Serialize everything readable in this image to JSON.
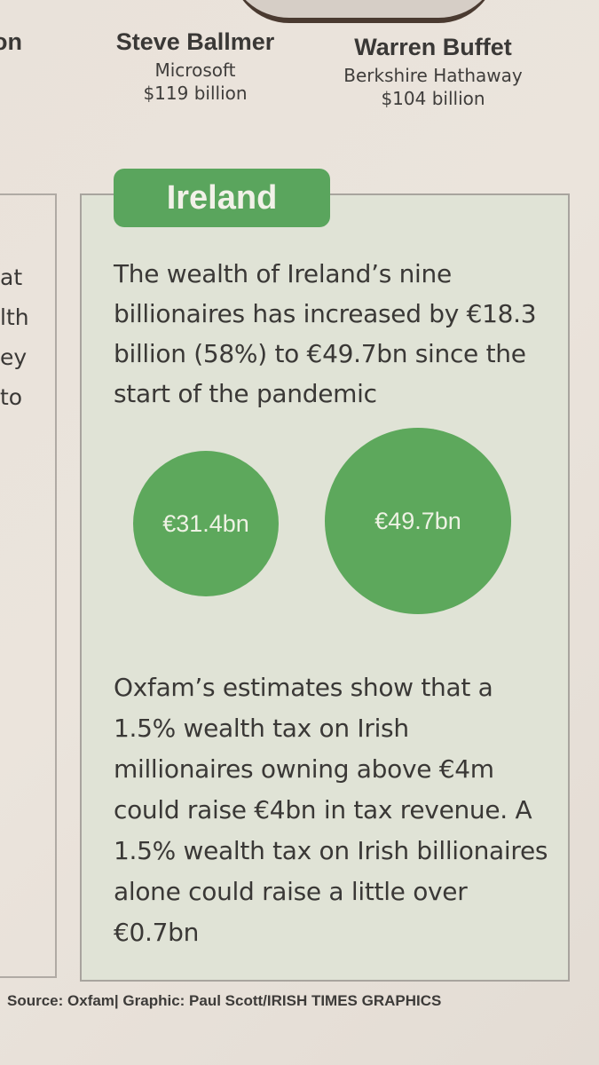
{
  "people": {
    "left_partial": "on",
    "ballmer": {
      "name": "Steve Ballmer",
      "company": "Microsoft",
      "wealth": "$119 billion"
    },
    "buffett": {
      "name": "Warren Buffet",
      "company": "Berkshire Hathaway",
      "wealth": "$104 billion"
    }
  },
  "left_column": [
    "at",
    "lth",
    "ey",
    "to"
  ],
  "ireland": {
    "tab": "Ireland",
    "intro": "The wealth of Ireland’s nine billionaires has increased by €18.3 billion (58%) to €49.7bn since the start of the pandemic",
    "bubble_before": "€31.4bn",
    "bubble_after": "€49.7bn",
    "tax_text": "Oxfam’s estimates show that a 1.5% wealth tax on Irish millionaires owning above €4m could raise €4bn in tax revenue. A 1.5% wealth tax on Irish billionaires alone could raise a little over €0.7bn"
  },
  "source": "Source: Oxfam| Graphic: Paul Scott/IRISH TIMES GRAPHICS",
  "colors": {
    "accent_green": "#5aa55d",
    "panel_bg": "#e0e3d6"
  }
}
